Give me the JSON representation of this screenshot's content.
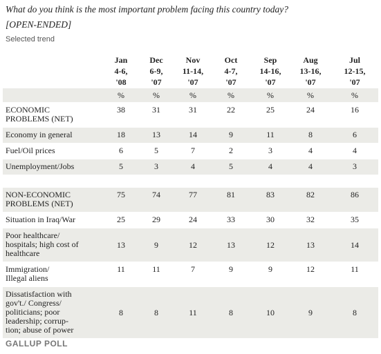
{
  "header": {
    "title": "What do you think is the most important problem facing this country today?",
    "subtitle": "[OPEN-ENDED]",
    "note": "Selected trend"
  },
  "table": {
    "columns": [
      [
        "Jan",
        "4-6,",
        "'08"
      ],
      [
        "Dec",
        "6-9,",
        "'07"
      ],
      [
        "Nov",
        "11-14,",
        "'07"
      ],
      [
        "Oct",
        "4-7,",
        "'07"
      ],
      [
        "Sep",
        "14-16,",
        "'07"
      ],
      [
        "Aug",
        "13-16,",
        "'07"
      ],
      [
        "Jul",
        "12-15,",
        "'07"
      ]
    ],
    "unit": "%",
    "rows": [
      {
        "label": [
          "ECONOMIC",
          "PROBLEMS (NET)"
        ],
        "values": [
          38,
          31,
          31,
          22,
          25,
          24,
          16
        ]
      },
      {
        "label": [
          "Economy in general"
        ],
        "values": [
          18,
          13,
          14,
          9,
          11,
          8,
          6
        ]
      },
      {
        "label": [
          "Fuel/Oil prices"
        ],
        "values": [
          6,
          5,
          7,
          2,
          3,
          4,
          4
        ]
      },
      {
        "label": [
          "Unemployment/Jobs"
        ],
        "values": [
          5,
          3,
          4,
          5,
          4,
          4,
          3
        ]
      },
      {
        "label": [
          "NON-ECONOMIC",
          "PROBLEMS (NET)"
        ],
        "values": [
          75,
          74,
          77,
          81,
          83,
          82,
          86
        ]
      },
      {
        "label": [
          "Situation in Iraq/War"
        ],
        "values": [
          25,
          29,
          24,
          33,
          30,
          32,
          35
        ]
      },
      {
        "label": [
          "Poor healthcare/",
          "hospitals; high cost of",
          "healthcare"
        ],
        "values": [
          13,
          9,
          12,
          13,
          12,
          13,
          14
        ]
      },
      {
        "label": [
          "Immigration/",
          "Illegal aliens"
        ],
        "values": [
          11,
          11,
          7,
          9,
          9,
          12,
          11
        ]
      },
      {
        "label": [
          "Dissatisfaction with",
          "gov't./ Congress/",
          "politicians; poor",
          "leadership; corrup-",
          "tion; abuse of power"
        ],
        "values": [
          8,
          8,
          11,
          8,
          10,
          9,
          8
        ]
      }
    ]
  },
  "footer": {
    "source": "GALLUP POLL"
  }
}
